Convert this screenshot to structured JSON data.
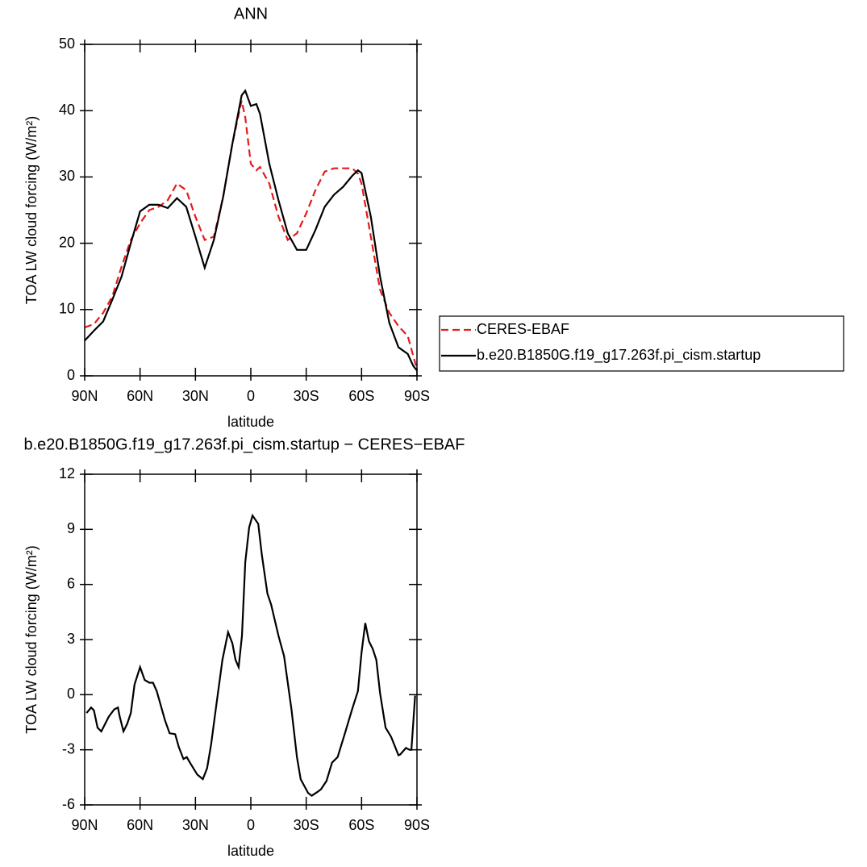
{
  "chart_data": [
    {
      "type": "line",
      "title": "ANN",
      "x_label": "latitude",
      "y_label": "TOA LW cloud forcing (W/m²)",
      "x": [
        90,
        85,
        80,
        75,
        70,
        65,
        60,
        55,
        50,
        45,
        40,
        35,
        30,
        25,
        20,
        15,
        10,
        5,
        3,
        0,
        -3,
        -5,
        -10,
        -15,
        -20,
        -25,
        -30,
        -35,
        -40,
        -45,
        -50,
        -55,
        -58,
        -60,
        -65,
        -70,
        -75,
        -80,
        -85,
        -88,
        -90
      ],
      "series": [
        {
          "name": "CERES-EBAF",
          "color": "#e41a1c",
          "dashed": true,
          "values": [
            7.3,
            7.8,
            9.5,
            12,
            16.5,
            20.5,
            23,
            25,
            25.5,
            26.5,
            29,
            28,
            24,
            20.5,
            21,
            27,
            35,
            41.5,
            39,
            32,
            31,
            31.5,
            29,
            24,
            20.5,
            21.5,
            24.5,
            28,
            30.8,
            31.3,
            31.3,
            31.3,
            30.5,
            29,
            21,
            13,
            9.5,
            7.5,
            6,
            3,
            1
          ]
        },
        {
          "name": "b.e20.B1850G.f19_g17.263f.pi_cism.startup",
          "color": "#000000",
          "dashed": false,
          "values": [
            5.3,
            6.8,
            8.2,
            11.5,
            15,
            20,
            24.8,
            25.8,
            25.8,
            25.3,
            26.8,
            25.5,
            21,
            16.3,
            20.5,
            27,
            35,
            42.3,
            43,
            40.7,
            41,
            39.5,
            32,
            26.5,
            21.5,
            19,
            19,
            22,
            25.5,
            27.3,
            28.5,
            30.2,
            31,
            30.6,
            24,
            15,
            8,
            4.3,
            3.3,
            1.5,
            0.8
          ]
        }
      ],
      "xlim": [
        90,
        -90
      ],
      "xticks": [
        {
          "value": 90,
          "label": "90N"
        },
        {
          "value": 60,
          "label": "60N"
        },
        {
          "value": 30,
          "label": "30N"
        },
        0,
        {
          "value": -30,
          "label": "30S"
        },
        {
          "value": -60,
          "label": "60S"
        },
        {
          "value": -90,
          "label": "90S"
        }
      ],
      "ylim": [
        0,
        50
      ],
      "yticks": [
        0,
        10,
        20,
        30,
        40,
        50
      ],
      "legend": "right"
    },
    {
      "type": "line",
      "title": "b.e20.B1850G.f19_g17.263f.pi_cism.startup − CERES−EBAF",
      "x_label": "latitude",
      "y_label": "TOA LW cloud forcing (W/m²)",
      "x": [
        89,
        86.5,
        85,
        83,
        81,
        77,
        74,
        72,
        71,
        69,
        67,
        65,
        63,
        60,
        57.5,
        55,
        53,
        51,
        49,
        46.5,
        44,
        41,
        39,
        36.5,
        34.7,
        33,
        29,
        26,
        23.7,
        21.5,
        19,
        15.4,
        12.3,
        10,
        8.3,
        6.6,
        4.8,
        3,
        0.9,
        -0.9,
        -4,
        -6,
        -9,
        -11,
        -15,
        -18,
        -22,
        -25,
        -27,
        -31,
        -33,
        -36,
        -38,
        -41,
        -44,
        -47,
        -51,
        -55,
        -58,
        -60,
        -62,
        -64,
        -66,
        -68,
        -70,
        -73,
        -76,
        -80,
        -81,
        -84,
        -86,
        -87,
        -89
      ],
      "series": [
        {
          "color": "#000000",
          "dashed": false,
          "values": [
            -1.0,
            -0.7,
            -0.85,
            -1.8,
            -2.0,
            -1.2,
            -0.8,
            -0.7,
            -1.2,
            -2.0,
            -1.6,
            -1.0,
            0.55,
            1.5,
            0.8,
            0.65,
            0.65,
            0.2,
            -0.5,
            -1.4,
            -2.1,
            -2.15,
            -2.85,
            -3.5,
            -3.4,
            -3.7,
            -4.35,
            -4.6,
            -4.0,
            -2.7,
            -0.8,
            1.9,
            3.4,
            2.8,
            1.9,
            1.5,
            3.2,
            7.2,
            9.1,
            9.75,
            9.3,
            7.6,
            5.5,
            4.9,
            3.2,
            2.1,
            -0.8,
            -3.4,
            -4.6,
            -5.35,
            -5.5,
            -5.3,
            -5.15,
            -4.7,
            -3.7,
            -3.4,
            -2.1,
            -0.75,
            0.2,
            2.3,
            3.9,
            2.9,
            2.5,
            1.9,
            0.1,
            -1.8,
            -2.3,
            -3.3,
            -3.25,
            -2.9,
            -3.0,
            -3.0,
            -0.05
          ]
        }
      ],
      "xlim": [
        90,
        -90
      ],
      "xticks": [
        {
          "value": 90,
          "label": "90N"
        },
        {
          "value": 60,
          "label": "60N"
        },
        {
          "value": 30,
          "label": "30N"
        },
        0,
        {
          "value": -30,
          "label": "30S"
        },
        {
          "value": -60,
          "label": "60S"
        },
        {
          "value": -90,
          "label": "90S"
        }
      ],
      "ylim": [
        -6,
        12
      ],
      "yticks": [
        -6,
        -3,
        0,
        3,
        6,
        9,
        12
      ]
    }
  ]
}
